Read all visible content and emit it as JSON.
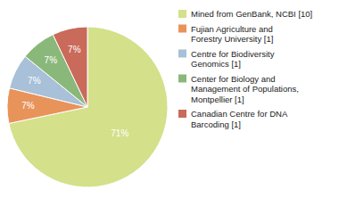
{
  "chart_data": {
    "type": "pie",
    "categories": [
      "Mined from GenBank, NCBI [10]",
      "Fujian Agriculture and\nForestry University [1]",
      "Centre for Biodiversity\nGenomics [1]",
      "Center for Biology and\nManagement of Populations,\nMontpellier [1]",
      "Canadian Centre for DNA\nBarcoding [1]"
    ],
    "values": [
      71,
      7,
      7,
      7,
      7
    ],
    "value_labels": [
      "71%",
      "7%",
      "7%",
      "7%",
      "7%"
    ],
    "colors": [
      "#d4e08a",
      "#e8935a",
      "#a8c0d8",
      "#8ab87a",
      "#c96a5a"
    ],
    "data_labels": true,
    "legend": "right"
  }
}
